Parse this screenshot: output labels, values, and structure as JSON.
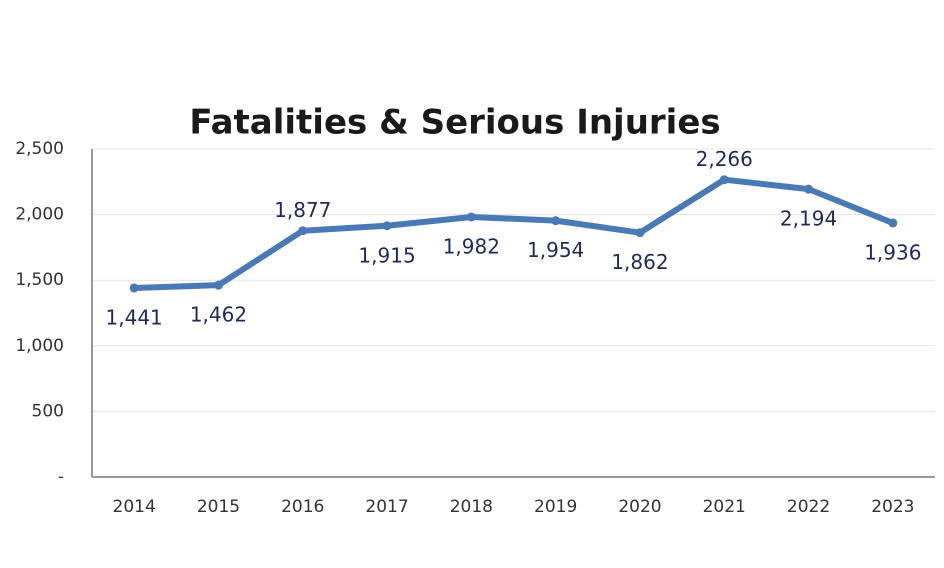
{
  "chart_data": {
    "type": "line",
    "title": "Fatalities & Serious Injuries",
    "categories": [
      "2014",
      "2015",
      "2016",
      "2017",
      "2018",
      "2019",
      "2020",
      "2021",
      "2022",
      "2023"
    ],
    "series": [
      {
        "name": "Fatalities & Serious Injuries",
        "color": "#4a7ab5",
        "values": [
          1441,
          1462,
          1877,
          1915,
          1982,
          1954,
          1862,
          2266,
          2194,
          1936
        ],
        "value_labels": [
          "1,441",
          "1,462",
          "1,877",
          "1,915",
          "1,982",
          "1,954",
          "1,862",
          "2,266",
          "2,194",
          "1,936"
        ]
      }
    ],
    "ylim": [
      0,
      2500
    ],
    "yticks": [
      {
        "value": 0,
        "label": "-"
      },
      500,
      {
        "value": 1000,
        "label": "1,000"
      },
      {
        "value": 1500,
        "label": "1,500"
      },
      {
        "value": 2000,
        "label": "2,000"
      },
      {
        "value": 2500,
        "label": "2,500"
      }
    ],
    "grid": true
  }
}
